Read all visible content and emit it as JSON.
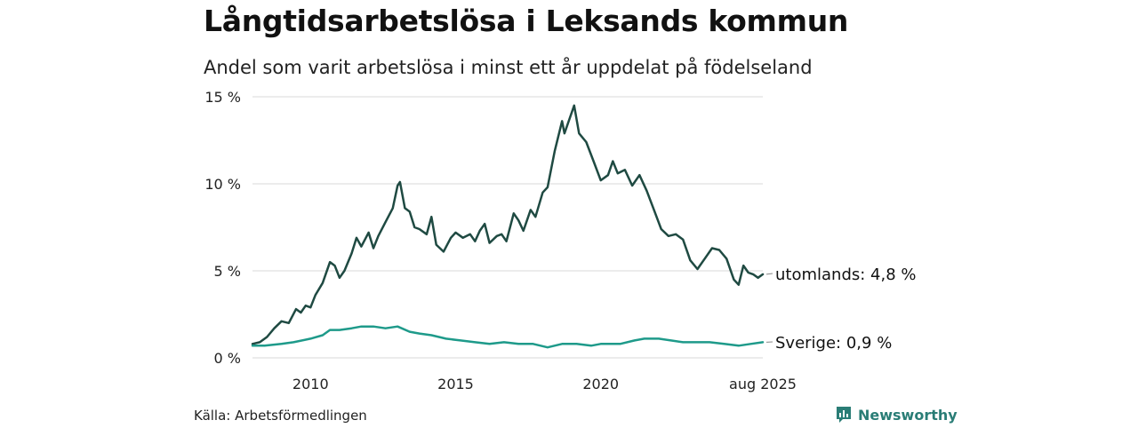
{
  "header": {
    "title": "Långtidsarbetslösa i Leksands kommun",
    "subtitle": "Andel som varit arbetslösa i minst ett år uppdelat på födelseland"
  },
  "footer": {
    "source": "Källa: Arbetsförmedlingen",
    "brand": "Newsworthy"
  },
  "colors": {
    "utomlands": "#1f4a42",
    "sverige": "#1e9a8a",
    "grid": "#d9d9d9",
    "brand": "#2a7d76"
  },
  "chart_data": {
    "type": "line",
    "y_ticks": [
      "0 %",
      "5 %",
      "10 %",
      "15 %"
    ],
    "y_tick_values": [
      0,
      5,
      10,
      15
    ],
    "x_ticks": [
      "2010",
      "2015",
      "2020",
      "aug 2025"
    ],
    "x_tick_values": [
      "2010-01",
      "2015-01",
      "2020-01",
      "2025-08"
    ],
    "ylim": [
      0,
      15
    ],
    "xlim": [
      "2008-01",
      "2025-08"
    ],
    "grid": "horizontal",
    "series": [
      {
        "name": "utomlands",
        "end_label": "utomlands: 4,8 %",
        "points": [
          [
            "2008-01",
            0.8
          ],
          [
            "2008-04",
            0.9
          ],
          [
            "2008-07",
            1.2
          ],
          [
            "2008-10",
            1.7
          ],
          [
            "2009-01",
            2.1
          ],
          [
            "2009-04",
            2.0
          ],
          [
            "2009-07",
            2.8
          ],
          [
            "2009-09",
            2.6
          ],
          [
            "2009-11",
            3.0
          ],
          [
            "2010-01",
            2.9
          ],
          [
            "2010-03",
            3.6
          ],
          [
            "2010-06",
            4.3
          ],
          [
            "2010-09",
            5.5
          ],
          [
            "2010-11",
            5.3
          ],
          [
            "2011-01",
            4.6
          ],
          [
            "2011-03",
            5.0
          ],
          [
            "2011-06",
            6.0
          ],
          [
            "2011-08",
            6.9
          ],
          [
            "2011-10",
            6.4
          ],
          [
            "2012-01",
            7.2
          ],
          [
            "2012-03",
            6.3
          ],
          [
            "2012-05",
            7.0
          ],
          [
            "2012-08",
            7.8
          ],
          [
            "2012-11",
            8.6
          ],
          [
            "2013-01",
            9.9
          ],
          [
            "2013-02",
            10.1
          ],
          [
            "2013-04",
            8.6
          ],
          [
            "2013-06",
            8.4
          ],
          [
            "2013-08",
            7.5
          ],
          [
            "2013-10",
            7.4
          ],
          [
            "2014-01",
            7.1
          ],
          [
            "2014-03",
            8.1
          ],
          [
            "2014-05",
            6.5
          ],
          [
            "2014-08",
            6.1
          ],
          [
            "2014-11",
            6.9
          ],
          [
            "2015-01",
            7.2
          ],
          [
            "2015-04",
            6.9
          ],
          [
            "2015-07",
            7.1
          ],
          [
            "2015-09",
            6.7
          ],
          [
            "2015-11",
            7.3
          ],
          [
            "2016-01",
            7.7
          ],
          [
            "2016-03",
            6.6
          ],
          [
            "2016-06",
            7.0
          ],
          [
            "2016-08",
            7.1
          ],
          [
            "2016-10",
            6.7
          ],
          [
            "2017-01",
            8.3
          ],
          [
            "2017-03",
            7.9
          ],
          [
            "2017-05",
            7.3
          ],
          [
            "2017-08",
            8.5
          ],
          [
            "2017-10",
            8.1
          ],
          [
            "2018-01",
            9.5
          ],
          [
            "2018-03",
            9.8
          ],
          [
            "2018-06",
            11.9
          ],
          [
            "2018-09",
            13.6
          ],
          [
            "2018-10",
            12.9
          ],
          [
            "2019-01",
            14.1
          ],
          [
            "2019-02",
            14.5
          ],
          [
            "2019-04",
            12.9
          ],
          [
            "2019-07",
            12.4
          ],
          [
            "2019-10",
            11.3
          ],
          [
            "2020-01",
            10.2
          ],
          [
            "2020-04",
            10.5
          ],
          [
            "2020-06",
            11.3
          ],
          [
            "2020-08",
            10.6
          ],
          [
            "2020-11",
            10.8
          ],
          [
            "2021-02",
            9.9
          ],
          [
            "2021-05",
            10.5
          ],
          [
            "2021-08",
            9.6
          ],
          [
            "2021-11",
            8.5
          ],
          [
            "2022-02",
            7.4
          ],
          [
            "2022-05",
            7.0
          ],
          [
            "2022-08",
            7.1
          ],
          [
            "2022-11",
            6.8
          ],
          [
            "2023-02",
            5.6
          ],
          [
            "2023-05",
            5.1
          ],
          [
            "2023-08",
            5.7
          ],
          [
            "2023-11",
            6.3
          ],
          [
            "2024-02",
            6.2
          ],
          [
            "2024-05",
            5.7
          ],
          [
            "2024-08",
            4.5
          ],
          [
            "2024-10",
            4.2
          ],
          [
            "2024-12",
            5.3
          ],
          [
            "2025-02",
            4.9
          ],
          [
            "2025-04",
            4.8
          ],
          [
            "2025-06",
            4.6
          ],
          [
            "2025-08",
            4.8
          ]
        ]
      },
      {
        "name": "Sverige",
        "end_label": "Sverige: 0,9 %",
        "points": [
          [
            "2008-01",
            0.7
          ],
          [
            "2008-06",
            0.7
          ],
          [
            "2009-01",
            0.8
          ],
          [
            "2009-06",
            0.9
          ],
          [
            "2010-01",
            1.1
          ],
          [
            "2010-06",
            1.3
          ],
          [
            "2010-09",
            1.6
          ],
          [
            "2011-01",
            1.6
          ],
          [
            "2011-06",
            1.7
          ],
          [
            "2011-10",
            1.8
          ],
          [
            "2012-03",
            1.8
          ],
          [
            "2012-08",
            1.7
          ],
          [
            "2013-01",
            1.8
          ],
          [
            "2013-06",
            1.5
          ],
          [
            "2013-10",
            1.4
          ],
          [
            "2014-03",
            1.3
          ],
          [
            "2014-09",
            1.1
          ],
          [
            "2015-03",
            1.0
          ],
          [
            "2015-09",
            0.9
          ],
          [
            "2016-03",
            0.8
          ],
          [
            "2016-09",
            0.9
          ],
          [
            "2017-03",
            0.8
          ],
          [
            "2017-09",
            0.8
          ],
          [
            "2018-03",
            0.6
          ],
          [
            "2018-09",
            0.8
          ],
          [
            "2019-03",
            0.8
          ],
          [
            "2019-09",
            0.7
          ],
          [
            "2020-01",
            0.8
          ],
          [
            "2020-04",
            0.8
          ],
          [
            "2020-09",
            0.8
          ],
          [
            "2021-03",
            1.0
          ],
          [
            "2021-07",
            1.1
          ],
          [
            "2022-01",
            1.1
          ],
          [
            "2022-06",
            1.0
          ],
          [
            "2022-11",
            0.9
          ],
          [
            "2023-04",
            0.9
          ],
          [
            "2023-10",
            0.9
          ],
          [
            "2024-04",
            0.8
          ],
          [
            "2024-10",
            0.7
          ],
          [
            "2025-03",
            0.8
          ],
          [
            "2025-08",
            0.9
          ]
        ]
      }
    ]
  }
}
